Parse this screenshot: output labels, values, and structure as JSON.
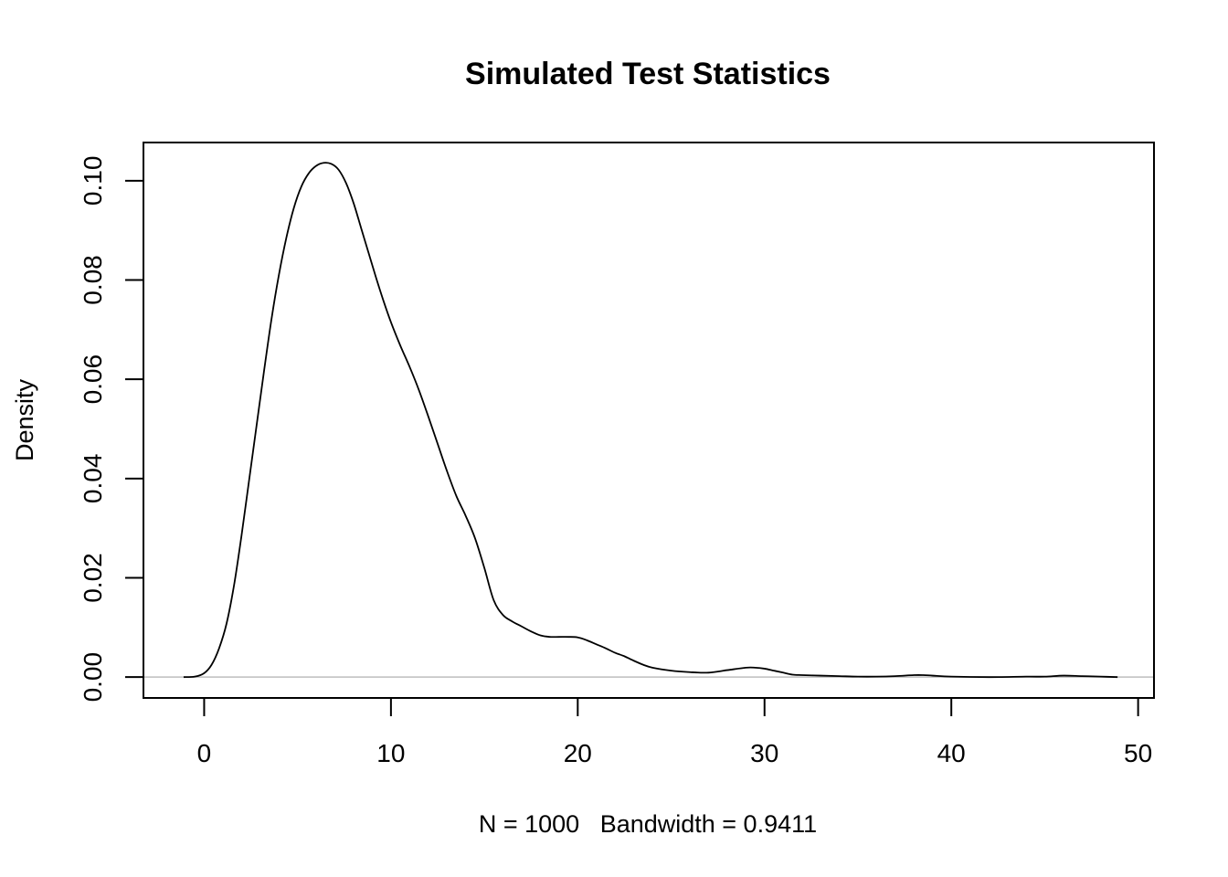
{
  "chart_data": {
    "type": "line",
    "title": "Simulated Test Statistics",
    "xlabel": "N = 1000   Bandwidth = 0.9411",
    "ylabel": "Density",
    "xlim": [
      -3.25,
      50.85
    ],
    "ylim": [
      -0.0042,
      0.1077
    ],
    "x_ticks": [
      0,
      10,
      20,
      30,
      40,
      50
    ],
    "x_tick_labels": [
      "0",
      "10",
      "20",
      "30",
      "40",
      "50"
    ],
    "y_ticks": [
      0,
      0.02,
      0.04,
      0.06,
      0.08,
      0.1
    ],
    "y_tick_labels": [
      "0.00",
      "0.02",
      "0.04",
      "0.06",
      "0.08",
      "0.10"
    ],
    "baseline": {
      "y": 0,
      "color": "#bebebe"
    },
    "grid": false,
    "legend": "none",
    "line_color": "#000000",
    "series": [
      {
        "x": [
          -1.1,
          -0.5,
          0,
          0.4,
          0.8,
          1.2,
          1.6,
          2.0,
          2.4,
          2.8,
          3.2,
          3.6,
          4.0,
          4.4,
          4.8,
          5.2,
          5.6,
          6.0,
          6.4,
          6.8,
          7.2,
          7.6,
          8.0,
          8.4,
          8.8,
          9.2,
          9.6,
          10.0,
          10.5,
          11.0,
          11.5,
          12.0,
          12.5,
          13.0,
          13.5,
          14.0,
          14.5,
          15.0,
          15.5,
          16.0,
          16.5,
          17.0,
          17.5,
          18.0,
          18.5,
          19.0,
          19.5,
          20.0,
          20.5,
          21.0,
          21.5,
          22.0,
          22.5,
          23.0,
          23.5,
          24.0,
          25.0,
          26.0,
          27.0,
          28.0,
          29.0,
          29.5,
          30.0,
          30.5,
          31.0,
          31.5,
          32.0,
          33.0,
          34.0,
          35.0,
          36.0,
          37.0,
          38.0,
          38.5,
          39.0,
          40.0,
          42.0,
          44.0,
          45.0,
          46.0,
          47.0,
          48.0,
          48.9
        ],
        "y": [
          0.0,
          0.0001,
          0.0008,
          0.0025,
          0.0058,
          0.0108,
          0.0185,
          0.0285,
          0.0395,
          0.0505,
          0.0615,
          0.072,
          0.081,
          0.0885,
          0.0945,
          0.0988,
          0.1015,
          0.103,
          0.1036,
          0.1034,
          0.1022,
          0.0995,
          0.0955,
          0.0905,
          0.0855,
          0.0805,
          0.0758,
          0.0715,
          0.0668,
          0.0625,
          0.0578,
          0.0525,
          0.047,
          0.0415,
          0.0365,
          0.0325,
          0.028,
          0.022,
          0.0155,
          0.0125,
          0.0112,
          0.0102,
          0.0092,
          0.0084,
          0.0081,
          0.0081,
          0.0081,
          0.008,
          0.0074,
          0.0066,
          0.0058,
          0.0049,
          0.0042,
          0.0033,
          0.0025,
          0.0019,
          0.0013,
          0.001,
          0.0009,
          0.0014,
          0.0019,
          0.0019,
          0.0017,
          0.0013,
          0.0009,
          0.0005,
          0.0004,
          0.0003,
          0.0002,
          0.0001,
          0.0001,
          0.0002,
          0.0004,
          0.0004,
          0.0003,
          0.0001,
          0.0,
          0.0001,
          0.0001,
          0.0003,
          0.0002,
          0.0001,
          0.0
        ]
      }
    ]
  }
}
